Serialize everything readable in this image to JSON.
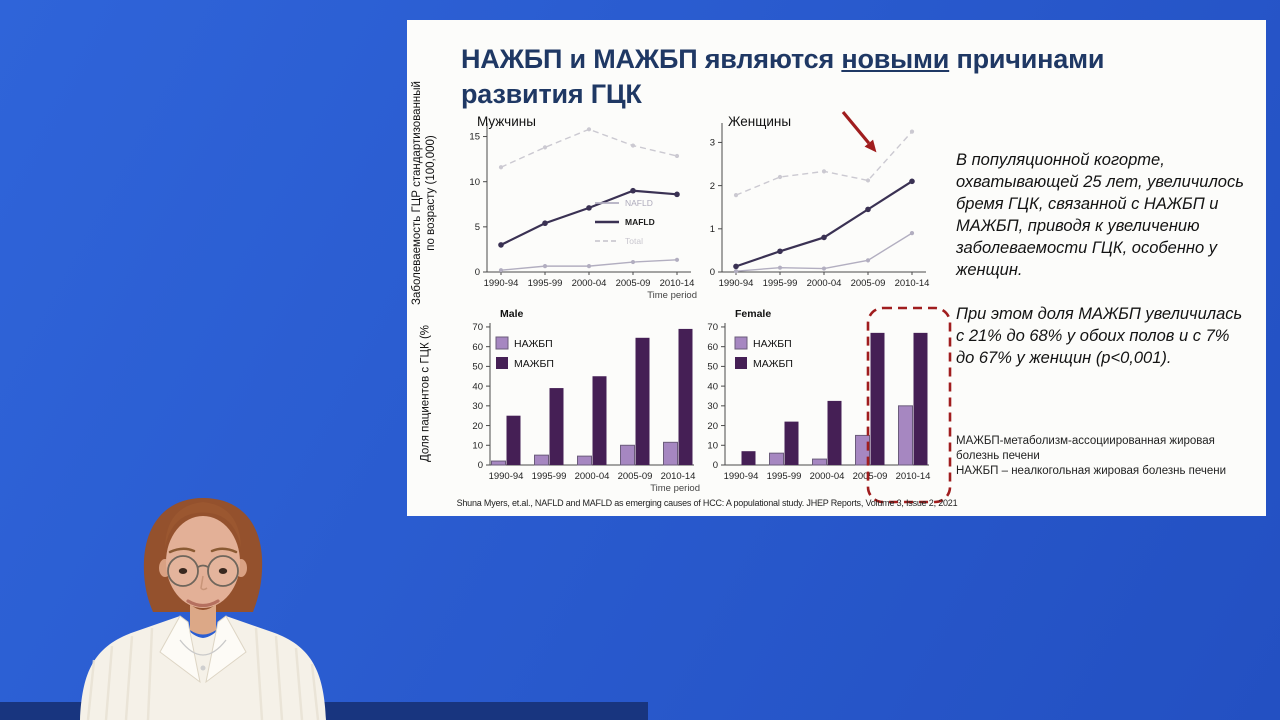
{
  "colors": {
    "background_top": "#2f64d9",
    "background_bottom": "#2350c2",
    "desk_bar": "#18357f",
    "slide_bg": "#fcfcfa",
    "title": "#1f3864",
    "accent_red": "#a01d1e",
    "nafld_light": "#b2aec0",
    "total_light": "#cbc9d1",
    "mafld_dark": "#3a3153",
    "bar_light": "#a687c1",
    "bar_light_border": "#6b5c7b",
    "bar_dark": "#451f55",
    "axis": "#4a4a4a"
  },
  "slide": {
    "title": {
      "pre": "НАЖБП и МАЖБП являются ",
      "underline": "новыми",
      "post": " причинами развития ГЦК"
    },
    "y_axis_label_top_line1": "Заболеваемость ГЦР стандартизованный",
    "y_axis_label_top_line2": "по возрасту (100,000)",
    "y_axis_label_bottom": "Доля пациентов с ГЦК (%",
    "right_panel": {
      "paragraph1": "В популяционной когорте, охватывающей 25 лет, увеличилось бремя ГЦК, связанной с НАЖБП и МАЖБП, приводя к увеличению заболеваемости ГЦК, особенно у женщин.",
      "paragraph2": "При этом доля МАЖБП увеличилась с 21% до 68% у обоих полов и с 7% до 67% у женщин (p<0,001).",
      "footnote_line1": "МАЖБП-метаболизм-ассоциированная жировая болезнь печени",
      "footnote_line2": "НАЖБП – неалкогольная жировая болезнь печени"
    },
    "citation": "Shuna Myers, et.al., NAFLD and MAFLD as emerging causes of HCC: A populational study. JHEP Reports, Volume 3, Issue 2, 2021"
  },
  "chart_data": [
    {
      "id": "men-incidence",
      "type": "line",
      "title": "Мужчины",
      "categories": [
        "1990-94",
        "1995-99",
        "2000-04",
        "2005-09",
        "2010-14"
      ],
      "series": [
        {
          "name": "NAFLD",
          "style": "light-solid",
          "values": [
            0.2,
            0.65,
            0.65,
            1.1,
            1.35
          ]
        },
        {
          "name": "MAFLD",
          "style": "dark-solid",
          "values": [
            3.0,
            5.4,
            7.1,
            9.0,
            8.6
          ]
        },
        {
          "name": "Total",
          "style": "light-dashed",
          "values": [
            11.6,
            13.8,
            15.8,
            14.0,
            12.85
          ]
        }
      ],
      "yticks": [
        0,
        5,
        10,
        15
      ],
      "ylim": [
        0,
        16.5
      ],
      "xlabel": "Time period",
      "legend": true
    },
    {
      "id": "women-incidence",
      "type": "line",
      "title": "Женщины",
      "categories": [
        "1990-94",
        "1995-99",
        "2000-04",
        "2005-09",
        "2010-14"
      ],
      "series": [
        {
          "name": "NAFLD",
          "style": "light-solid",
          "values": [
            0.02,
            0.1,
            0.08,
            0.27,
            0.9
          ]
        },
        {
          "name": "MAFLD",
          "style": "dark-solid",
          "values": [
            0.13,
            0.48,
            0.8,
            1.45,
            2.1
          ]
        },
        {
          "name": "Total",
          "style": "light-dashed",
          "values": [
            1.78,
            2.2,
            2.33,
            2.12,
            3.25
          ]
        }
      ],
      "yticks": [
        0,
        1,
        2,
        3
      ],
      "ylim": [
        0,
        3.45
      ],
      "xlabel": "",
      "legend": false,
      "annotation": "red-arrow"
    },
    {
      "id": "male-proportion",
      "type": "bar",
      "title": "Male",
      "categories": [
        "1990-94",
        "1995-99",
        "2000-04",
        "2005-09",
        "2010-14"
      ],
      "series": [
        {
          "name": "НАЖБП",
          "style": "light-bar",
          "values": [
            2,
            5,
            4.5,
            10,
            11.5
          ]
        },
        {
          "name": "МАЖБП",
          "style": "dark-bar",
          "values": [
            25,
            39,
            45,
            64.5,
            69
          ]
        }
      ],
      "yticks": [
        0,
        10,
        20,
        30,
        40,
        50,
        60,
        70
      ],
      "ylim": [
        0,
        72
      ],
      "xlabel": "Time period",
      "legend": true
    },
    {
      "id": "female-proportion",
      "type": "bar",
      "title": "Female",
      "categories": [
        "1990-94",
        "1995-99",
        "2000-04",
        "2005-09",
        "2010-14"
      ],
      "series": [
        {
          "name": "НАЖБП",
          "style": "light-bar",
          "values": [
            0,
            6,
            3,
            15,
            30
          ]
        },
        {
          "name": "МАЖБП",
          "style": "dark-bar",
          "values": [
            7,
            22,
            32.5,
            67,
            67
          ]
        }
      ],
      "yticks": [
        0,
        10,
        20,
        30,
        40,
        50,
        60,
        70
      ],
      "ylim": [
        0,
        72
      ],
      "xlabel": "",
      "legend": true,
      "highlight_last_group": true
    }
  ]
}
